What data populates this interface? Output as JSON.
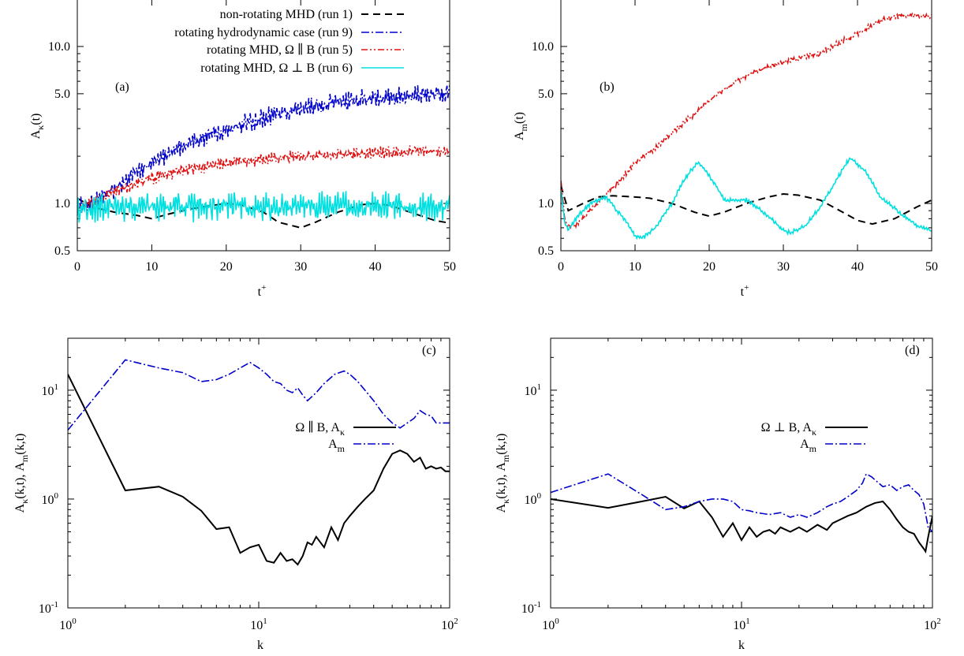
{
  "colors": {
    "run1": "#000000",
    "run9": "#0000cc",
    "run5": "#e01010",
    "run6": "#00e0e0",
    "black": "#000000",
    "blue": "#0000cc"
  },
  "chart_data": [
    {
      "type": "line",
      "panel_label": "(a)",
      "xlabel": "t⁺",
      "ylabel": "Aκ(t)",
      "xlim": [
        0,
        50
      ],
      "ylim": [
        0.5,
        20
      ],
      "yscale": "log",
      "xticks": [
        0,
        10,
        20,
        30,
        40,
        50
      ],
      "yticks": [
        0.5,
        1.0,
        5.0,
        10.0
      ],
      "ytick_labels": [
        "0.5",
        "1.0",
        "5.0",
        "10.0"
      ],
      "legend_position": "top-right",
      "series": [
        {
          "name": "non-rotating MHD (run 1)",
          "color_key": "run1",
          "dash": "9,6",
          "noise": 0,
          "x": [
            0,
            2,
            5,
            8,
            10,
            12,
            15,
            18,
            20,
            22,
            25,
            27,
            30,
            32,
            35,
            38,
            40,
            42,
            45,
            48,
            50
          ],
          "y": [
            1.08,
            0.95,
            0.88,
            0.84,
            0.8,
            0.85,
            0.92,
            0.97,
            1.0,
            0.98,
            0.88,
            0.76,
            0.7,
            0.76,
            0.88,
            0.98,
            1.0,
            0.97,
            0.87,
            0.78,
            0.75
          ]
        },
        {
          "name": "rotating hydrodynamic case (run 9)",
          "color_key": "run9",
          "dash": "10,3,2,3",
          "noise": 0.13,
          "x": [
            0,
            2,
            5,
            8,
            10,
            15,
            20,
            25,
            30,
            35,
            40,
            45,
            50
          ],
          "y": [
            0.95,
            1.0,
            1.25,
            1.6,
            1.8,
            2.4,
            3.0,
            3.5,
            4.0,
            4.4,
            4.7,
            4.9,
            5.0
          ]
        },
        {
          "name": "rotating MHD, Ω ∥ B (run 5)",
          "color_key": "run5",
          "dash": "8,3,2,3,2,3",
          "noise": 0.08,
          "x": [
            0,
            2,
            5,
            8,
            10,
            15,
            20,
            25,
            30,
            35,
            40,
            45,
            50
          ],
          "y": [
            0.95,
            1.0,
            1.2,
            1.35,
            1.45,
            1.65,
            1.8,
            1.9,
            2.0,
            2.05,
            2.1,
            2.15,
            2.15
          ]
        },
        {
          "name": "rotating MHD, Ω ⊥ B (run 6)",
          "color_key": "run6",
          "dash": "",
          "noise": 0.2,
          "x": [
            0,
            10,
            20,
            30,
            40,
            50
          ],
          "y": [
            0.93,
            0.97,
            0.95,
            0.95,
            0.95,
            0.95
          ]
        }
      ]
    },
    {
      "type": "line",
      "panel_label": "(b)",
      "xlabel": "t⁺",
      "ylabel": "Am(t)",
      "xlim": [
        0,
        50
      ],
      "ylim": [
        0.5,
        20
      ],
      "yscale": "log",
      "xticks": [
        0,
        10,
        20,
        30,
        40,
        50
      ],
      "yticks": [
        0.5,
        1.0,
        5.0,
        10.0
      ],
      "ytick_labels": [
        "0.5",
        "1.0",
        "5.0",
        "10.0"
      ],
      "series": [
        {
          "color_key": "run1",
          "dash": "9,6",
          "noise": 0,
          "x": [
            0,
            1,
            3,
            5,
            7,
            10,
            12,
            15,
            18,
            20,
            22,
            25,
            28,
            30,
            32,
            35,
            38,
            40,
            42,
            45,
            48,
            50
          ],
          "y": [
            1.3,
            0.9,
            1.0,
            1.1,
            1.12,
            1.1,
            1.08,
            1.0,
            0.88,
            0.83,
            0.88,
            1.0,
            1.1,
            1.15,
            1.13,
            1.05,
            0.88,
            0.78,
            0.74,
            0.8,
            0.95,
            1.05
          ]
        },
        {
          "color_key": "run5",
          "dash": "8,3,2,3,2,3",
          "noise": 0.04,
          "x": [
            0,
            0.5,
            1,
            2,
            3,
            5,
            8,
            10,
            13,
            15,
            18,
            20,
            25,
            30,
            35,
            40,
            43,
            45,
            47,
            50
          ],
          "y": [
            1.4,
            0.78,
            0.72,
            0.72,
            0.82,
            1.0,
            1.4,
            1.8,
            2.3,
            2.8,
            3.7,
            4.5,
            6.5,
            8.0,
            9.0,
            12.0,
            14.5,
            15.5,
            15.8,
            15.5
          ]
        },
        {
          "color_key": "run6",
          "dash": "",
          "noise": 0.03,
          "x": [
            0,
            0.5,
            1,
            2,
            4,
            6,
            8,
            10,
            11,
            13,
            15,
            17,
            18.5,
            20,
            22,
            25,
            27,
            30,
            31,
            33,
            35,
            37,
            39,
            41,
            43,
            46,
            48,
            50
          ],
          "y": [
            1.2,
            0.75,
            0.68,
            0.8,
            1.0,
            1.1,
            0.85,
            0.62,
            0.6,
            0.72,
            1.0,
            1.5,
            1.85,
            1.5,
            1.05,
            1.05,
            0.9,
            0.67,
            0.65,
            0.72,
            0.95,
            1.35,
            1.95,
            1.6,
            1.1,
            0.85,
            0.72,
            0.67
          ]
        }
      ]
    },
    {
      "type": "line",
      "panel_label": "(c)",
      "xlabel": "k",
      "ylabel": "Aκ(k,t), Am(k,t)",
      "xlim": [
        1,
        100
      ],
      "ylim": [
        0.1,
        30
      ],
      "xscale": "log",
      "yscale": "log",
      "xticks": [
        1,
        10,
        100
      ],
      "yticks": [
        0.1,
        1,
        10
      ],
      "legend_position": "center-right",
      "series": [
        {
          "name": "Ω ∥ B, Aκ",
          "color_key": "black",
          "dash": "",
          "noise": 0,
          "x": [
            1,
            2,
            3,
            4,
            5,
            6,
            7,
            8,
            9,
            10,
            11,
            12,
            13,
            14,
            15,
            16,
            17,
            18,
            19,
            20,
            22,
            24,
            26,
            28,
            30,
            33,
            36,
            40,
            45,
            50,
            55,
            60,
            65,
            70,
            75,
            80,
            85,
            90,
            95,
            100
          ],
          "y": [
            14,
            1.2,
            1.3,
            1.05,
            0.78,
            0.53,
            0.55,
            0.32,
            0.36,
            0.38,
            0.27,
            0.26,
            0.32,
            0.27,
            0.28,
            0.25,
            0.3,
            0.4,
            0.38,
            0.45,
            0.36,
            0.55,
            0.42,
            0.6,
            0.7,
            0.85,
            1.0,
            1.2,
            1.9,
            2.6,
            2.8,
            2.6,
            2.2,
            2.4,
            1.9,
            2.0,
            1.9,
            1.95,
            1.8,
            1.8
          ]
        },
        {
          "name": "Am",
          "color_key": "blue",
          "dash": "10,3,2,3",
          "noise": 0,
          "x": [
            1,
            2,
            3,
            4,
            5,
            6,
            7,
            8,
            9,
            10,
            11,
            12,
            13,
            14,
            15,
            16,
            17,
            18,
            20,
            22,
            25,
            28,
            30,
            33,
            36,
            40,
            45,
            50,
            55,
            60,
            65,
            70,
            75,
            80,
            85,
            90,
            95,
            100
          ],
          "y": [
            4.3,
            19,
            16,
            14.5,
            12,
            12.5,
            14,
            16,
            18,
            16,
            14,
            12,
            11.5,
            10,
            9.5,
            10.5,
            9,
            8,
            9.5,
            11.5,
            14,
            15,
            14,
            12,
            10,
            8,
            6,
            5,
            4.5,
            5,
            5.5,
            6.5,
            6,
            5.8,
            5,
            5,
            5,
            5
          ]
        }
      ]
    },
    {
      "type": "line",
      "panel_label": "(d)",
      "xlabel": "k",
      "ylabel": "Aκ(k,t), Am(k,t)",
      "xlim": [
        1,
        100
      ],
      "ylim": [
        0.1,
        30
      ],
      "xscale": "log",
      "yscale": "log",
      "xticks": [
        1,
        10,
        100
      ],
      "yticks": [
        0.1,
        1,
        10
      ],
      "legend_position": "center-right",
      "series": [
        {
          "name": "Ω ⊥ B, Aκ",
          "color_key": "black",
          "dash": "",
          "noise": 0,
          "x": [
            1,
            2,
            3,
            4,
            5,
            6,
            7,
            8,
            9,
            10,
            11,
            12,
            13,
            14,
            15,
            16,
            18,
            20,
            22,
            25,
            28,
            30,
            33,
            36,
            40,
            45,
            50,
            55,
            60,
            65,
            70,
            75,
            80,
            85,
            90,
            92,
            95,
            100
          ],
          "y": [
            1.0,
            0.83,
            0.95,
            1.05,
            0.82,
            0.95,
            0.68,
            0.45,
            0.6,
            0.42,
            0.55,
            0.45,
            0.5,
            0.52,
            0.48,
            0.55,
            0.5,
            0.55,
            0.5,
            0.58,
            0.52,
            0.6,
            0.65,
            0.7,
            0.75,
            0.85,
            0.92,
            0.95,
            0.8,
            0.65,
            0.55,
            0.5,
            0.48,
            0.4,
            0.35,
            0.33,
            0.45,
            0.7
          ]
        },
        {
          "name": "Am",
          "color_key": "blue",
          "dash": "10,3,2,3",
          "noise": 0,
          "x": [
            1,
            2,
            3,
            4,
            5,
            6,
            7,
            8,
            9,
            10,
            11,
            12,
            14,
            16,
            18,
            20,
            22,
            25,
            28,
            30,
            33,
            36,
            40,
            43,
            45,
            48,
            50,
            55,
            60,
            65,
            70,
            75,
            80,
            85,
            90,
            95,
            100
          ],
          "y": [
            1.15,
            1.7,
            1.1,
            0.8,
            0.85,
            0.95,
            1.0,
            1.0,
            0.95,
            0.8,
            0.78,
            0.75,
            0.72,
            0.75,
            0.68,
            0.72,
            0.68,
            0.75,
            0.85,
            0.9,
            0.95,
            1.05,
            1.2,
            1.4,
            1.7,
            1.6,
            1.5,
            1.3,
            1.35,
            1.2,
            1.3,
            1.35,
            1.2,
            1.1,
            0.9,
            0.55,
            0.5
          ]
        }
      ]
    }
  ]
}
